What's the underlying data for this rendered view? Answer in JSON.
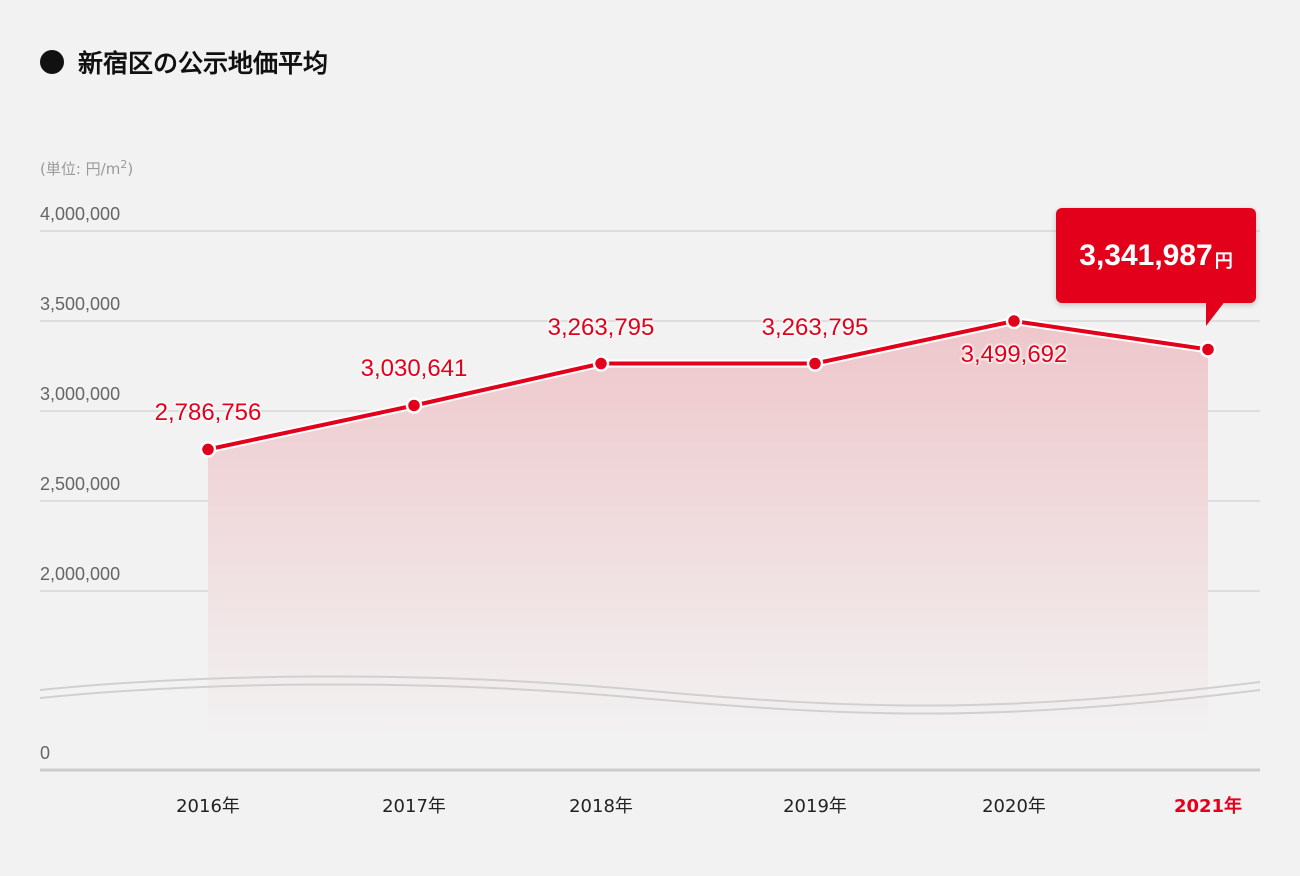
{
  "title": "新宿区の公示地価平均",
  "unit_label": "(単位: 円/m",
  "unit_sup": "2",
  "unit_close": ")",
  "callout": {
    "value": "3,341,987",
    "currency": "円"
  },
  "colors": {
    "line": "#e3001b",
    "fill_top": "#f0c8cc",
    "grid": "#d6d6d6",
    "axis": "#cccccc"
  },
  "chart_data": {
    "type": "area",
    "title": "新宿区の公示地価平均",
    "ylabel": "(単位: 円/m2)",
    "xlabel": "",
    "categories": [
      "2016年",
      "2017年",
      "2018年",
      "2019年",
      "2020年",
      "2021年"
    ],
    "values": [
      2786756,
      3030641,
      3263795,
      3263795,
      3499692,
      3341987
    ],
    "data_labels": [
      "2,786,756",
      "3,030,641",
      "3,263,795",
      "3,263,795",
      "3,499,692",
      ""
    ],
    "y_ticks": [
      "4,000,000",
      "3,500,000",
      "3,000,000",
      "2,500,000",
      "2,000,000",
      "0"
    ],
    "y_tick_values": [
      4000000,
      3500000,
      3000000,
      2500000,
      2000000,
      0
    ],
    "ylim": [
      0,
      4000000
    ],
    "axis_break": true,
    "grid": true,
    "highlight_index": 5
  }
}
